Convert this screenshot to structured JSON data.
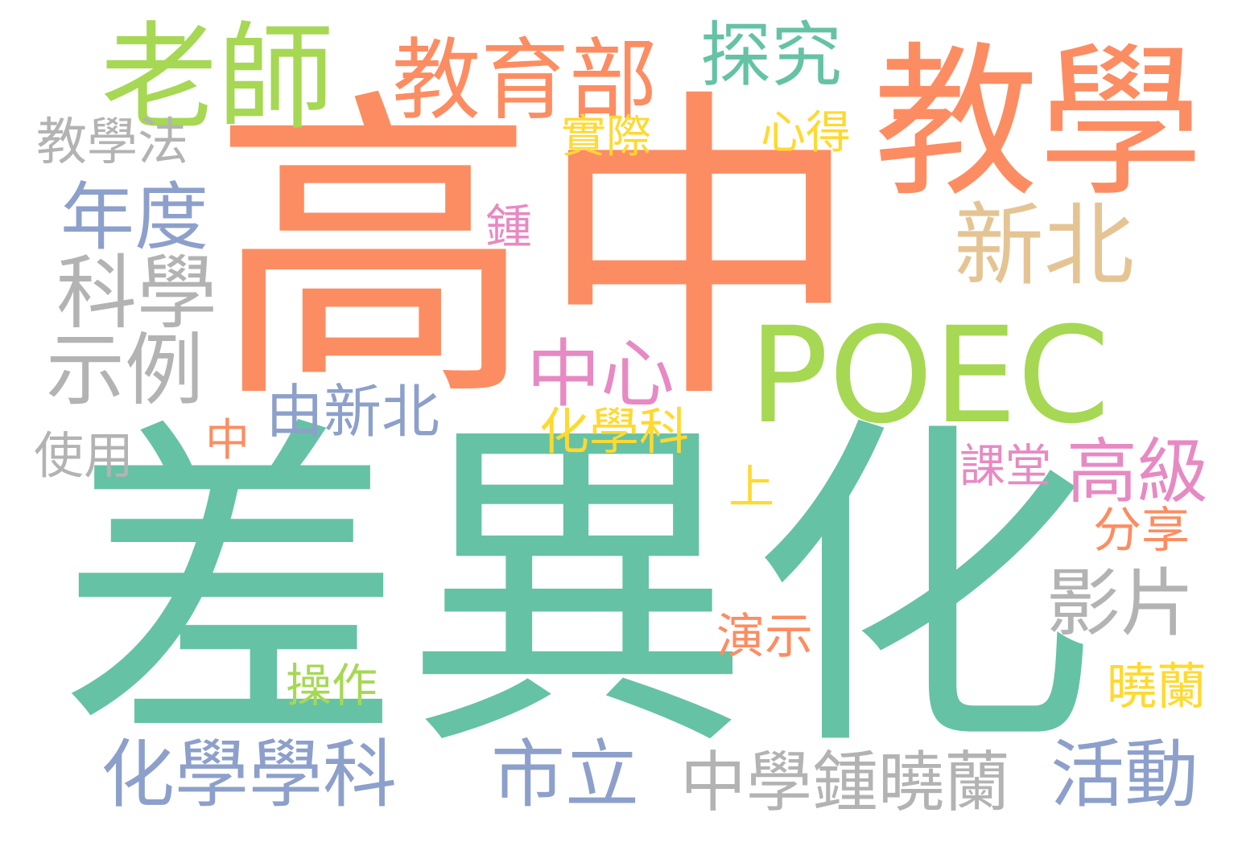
{
  "palette": {
    "teal": "#66c2a5",
    "orange": "#fc8d62",
    "blue": "#8da0cb",
    "pink": "#e78ac3",
    "green": "#a6d854",
    "yellow": "#ffd92f",
    "tan": "#e5c494",
    "gray": "#b3b3b3"
  },
  "words": [
    {
      "text": "高中",
      "color": "orange"
    },
    {
      "text": "差異化",
      "color": "teal"
    },
    {
      "text": "教學",
      "color": "orange"
    },
    {
      "text": "POEC",
      "color": "green"
    },
    {
      "text": "老師",
      "color": "green"
    },
    {
      "text": "教育部",
      "color": "orange"
    },
    {
      "text": "探究",
      "color": "teal"
    },
    {
      "text": "新北",
      "color": "tan"
    },
    {
      "text": "教學法",
      "color": "gray"
    },
    {
      "text": "年度",
      "color": "blue"
    },
    {
      "text": "科學",
      "color": "gray"
    },
    {
      "text": "示例",
      "color": "gray"
    },
    {
      "text": "實際",
      "color": "yellow"
    },
    {
      "text": "心得",
      "color": "yellow"
    },
    {
      "text": "鍾",
      "color": "pink"
    },
    {
      "text": "中心",
      "color": "pink"
    },
    {
      "text": "由新北",
      "color": "blue"
    },
    {
      "text": "化學科",
      "color": "yellow"
    },
    {
      "text": "使用",
      "color": "gray"
    },
    {
      "text": "中",
      "color": "orange"
    },
    {
      "text": "高級",
      "color": "pink"
    },
    {
      "text": "課堂",
      "color": "pink"
    },
    {
      "text": "上",
      "color": "yellow"
    },
    {
      "text": "分享",
      "color": "orange"
    },
    {
      "text": "影片",
      "color": "gray"
    },
    {
      "text": "演示",
      "color": "orange"
    },
    {
      "text": "曉蘭",
      "color": "yellow"
    },
    {
      "text": "操作",
      "color": "green"
    },
    {
      "text": "化學學科",
      "color": "blue"
    },
    {
      "text": "市立",
      "color": "blue"
    },
    {
      "text": "中學鍾曉蘭",
      "color": "gray"
    },
    {
      "text": "活動",
      "color": "blue"
    }
  ]
}
